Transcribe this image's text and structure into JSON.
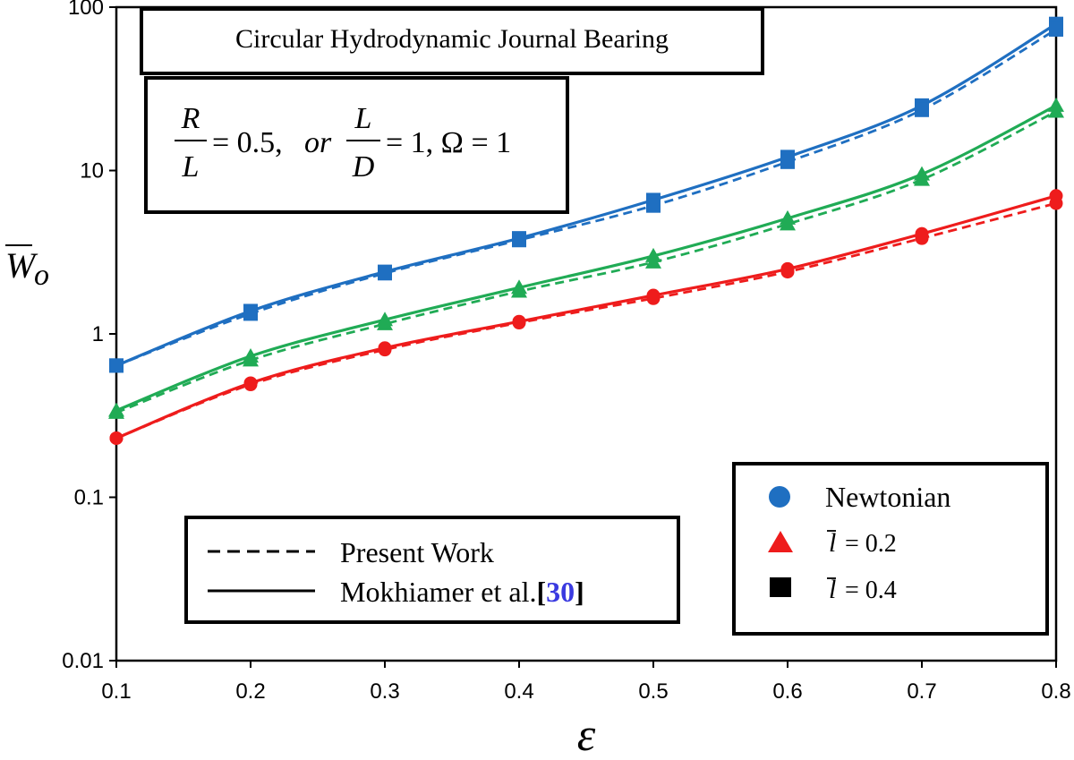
{
  "colors": {
    "newtonian": "#1f6fc1",
    "l02": "#ee1c1c",
    "l04": "#20ab55",
    "legend_square": "#000000"
  },
  "chart_data": {
    "type": "line",
    "title": "Circular Hydrodynamic Journal Bearing",
    "params": {
      "r_over_l_num": "R",
      "r_over_l_den": "L",
      "r_over_l_value": "= 0.5,",
      "or_text": "or",
      "l_over_d_num": "L",
      "l_over_d_den": "D",
      "l_over_d_value": "= 1, Ω = 1"
    },
    "xlabel": "ε",
    "ylabel": "W",
    "ylabel_sub": "o",
    "xlim": [
      0.1,
      0.8
    ],
    "ylim": [
      0.01,
      100
    ],
    "yscale": "log",
    "x_ticks": [
      "0.1",
      "0.2",
      "0.3",
      "0.4",
      "0.5",
      "0.6",
      "0.7",
      "0.8"
    ],
    "y_ticks": [
      "0.01",
      "0.1",
      "1",
      "10",
      "100"
    ],
    "x": [
      0.1,
      0.2,
      0.3,
      0.4,
      0.5,
      0.6,
      0.7,
      0.8
    ],
    "series": [
      {
        "key": "newtonian",
        "marker": "square",
        "present_work": [
          0.64,
          1.33,
          2.35,
          3.75,
          6.1,
          11.3,
          23.5,
          73
        ],
        "mokhiamer": [
          0.64,
          1.38,
          2.4,
          3.85,
          6.6,
          12.1,
          25.0,
          79
        ]
      },
      {
        "key": "l02",
        "marker": "circle",
        "present_work": [
          0.23,
          0.49,
          0.8,
          1.17,
          1.65,
          2.4,
          3.85,
          6.3
        ],
        "mokhiamer": [
          0.23,
          0.5,
          0.82,
          1.19,
          1.72,
          2.5,
          4.1,
          7.0
        ]
      },
      {
        "key": "l04",
        "marker": "triangle",
        "present_work": [
          0.33,
          0.69,
          1.15,
          1.82,
          2.75,
          4.7,
          8.8,
          23
        ],
        "mokhiamer": [
          0.34,
          0.73,
          1.22,
          1.92,
          3.0,
          5.1,
          9.5,
          25
        ]
      }
    ],
    "legend_lines": {
      "present": "Present Work",
      "mokhiamer": "Mokhiamer et al.",
      "ref_open": "[",
      "ref_num": "30",
      "ref_close": "]"
    },
    "legend_markers": {
      "newtonian": "Newtonian",
      "l02_symbol": "l",
      "l02_value": "= 0.2",
      "l04_symbol": "l",
      "l04_value": "= 0.4"
    }
  }
}
